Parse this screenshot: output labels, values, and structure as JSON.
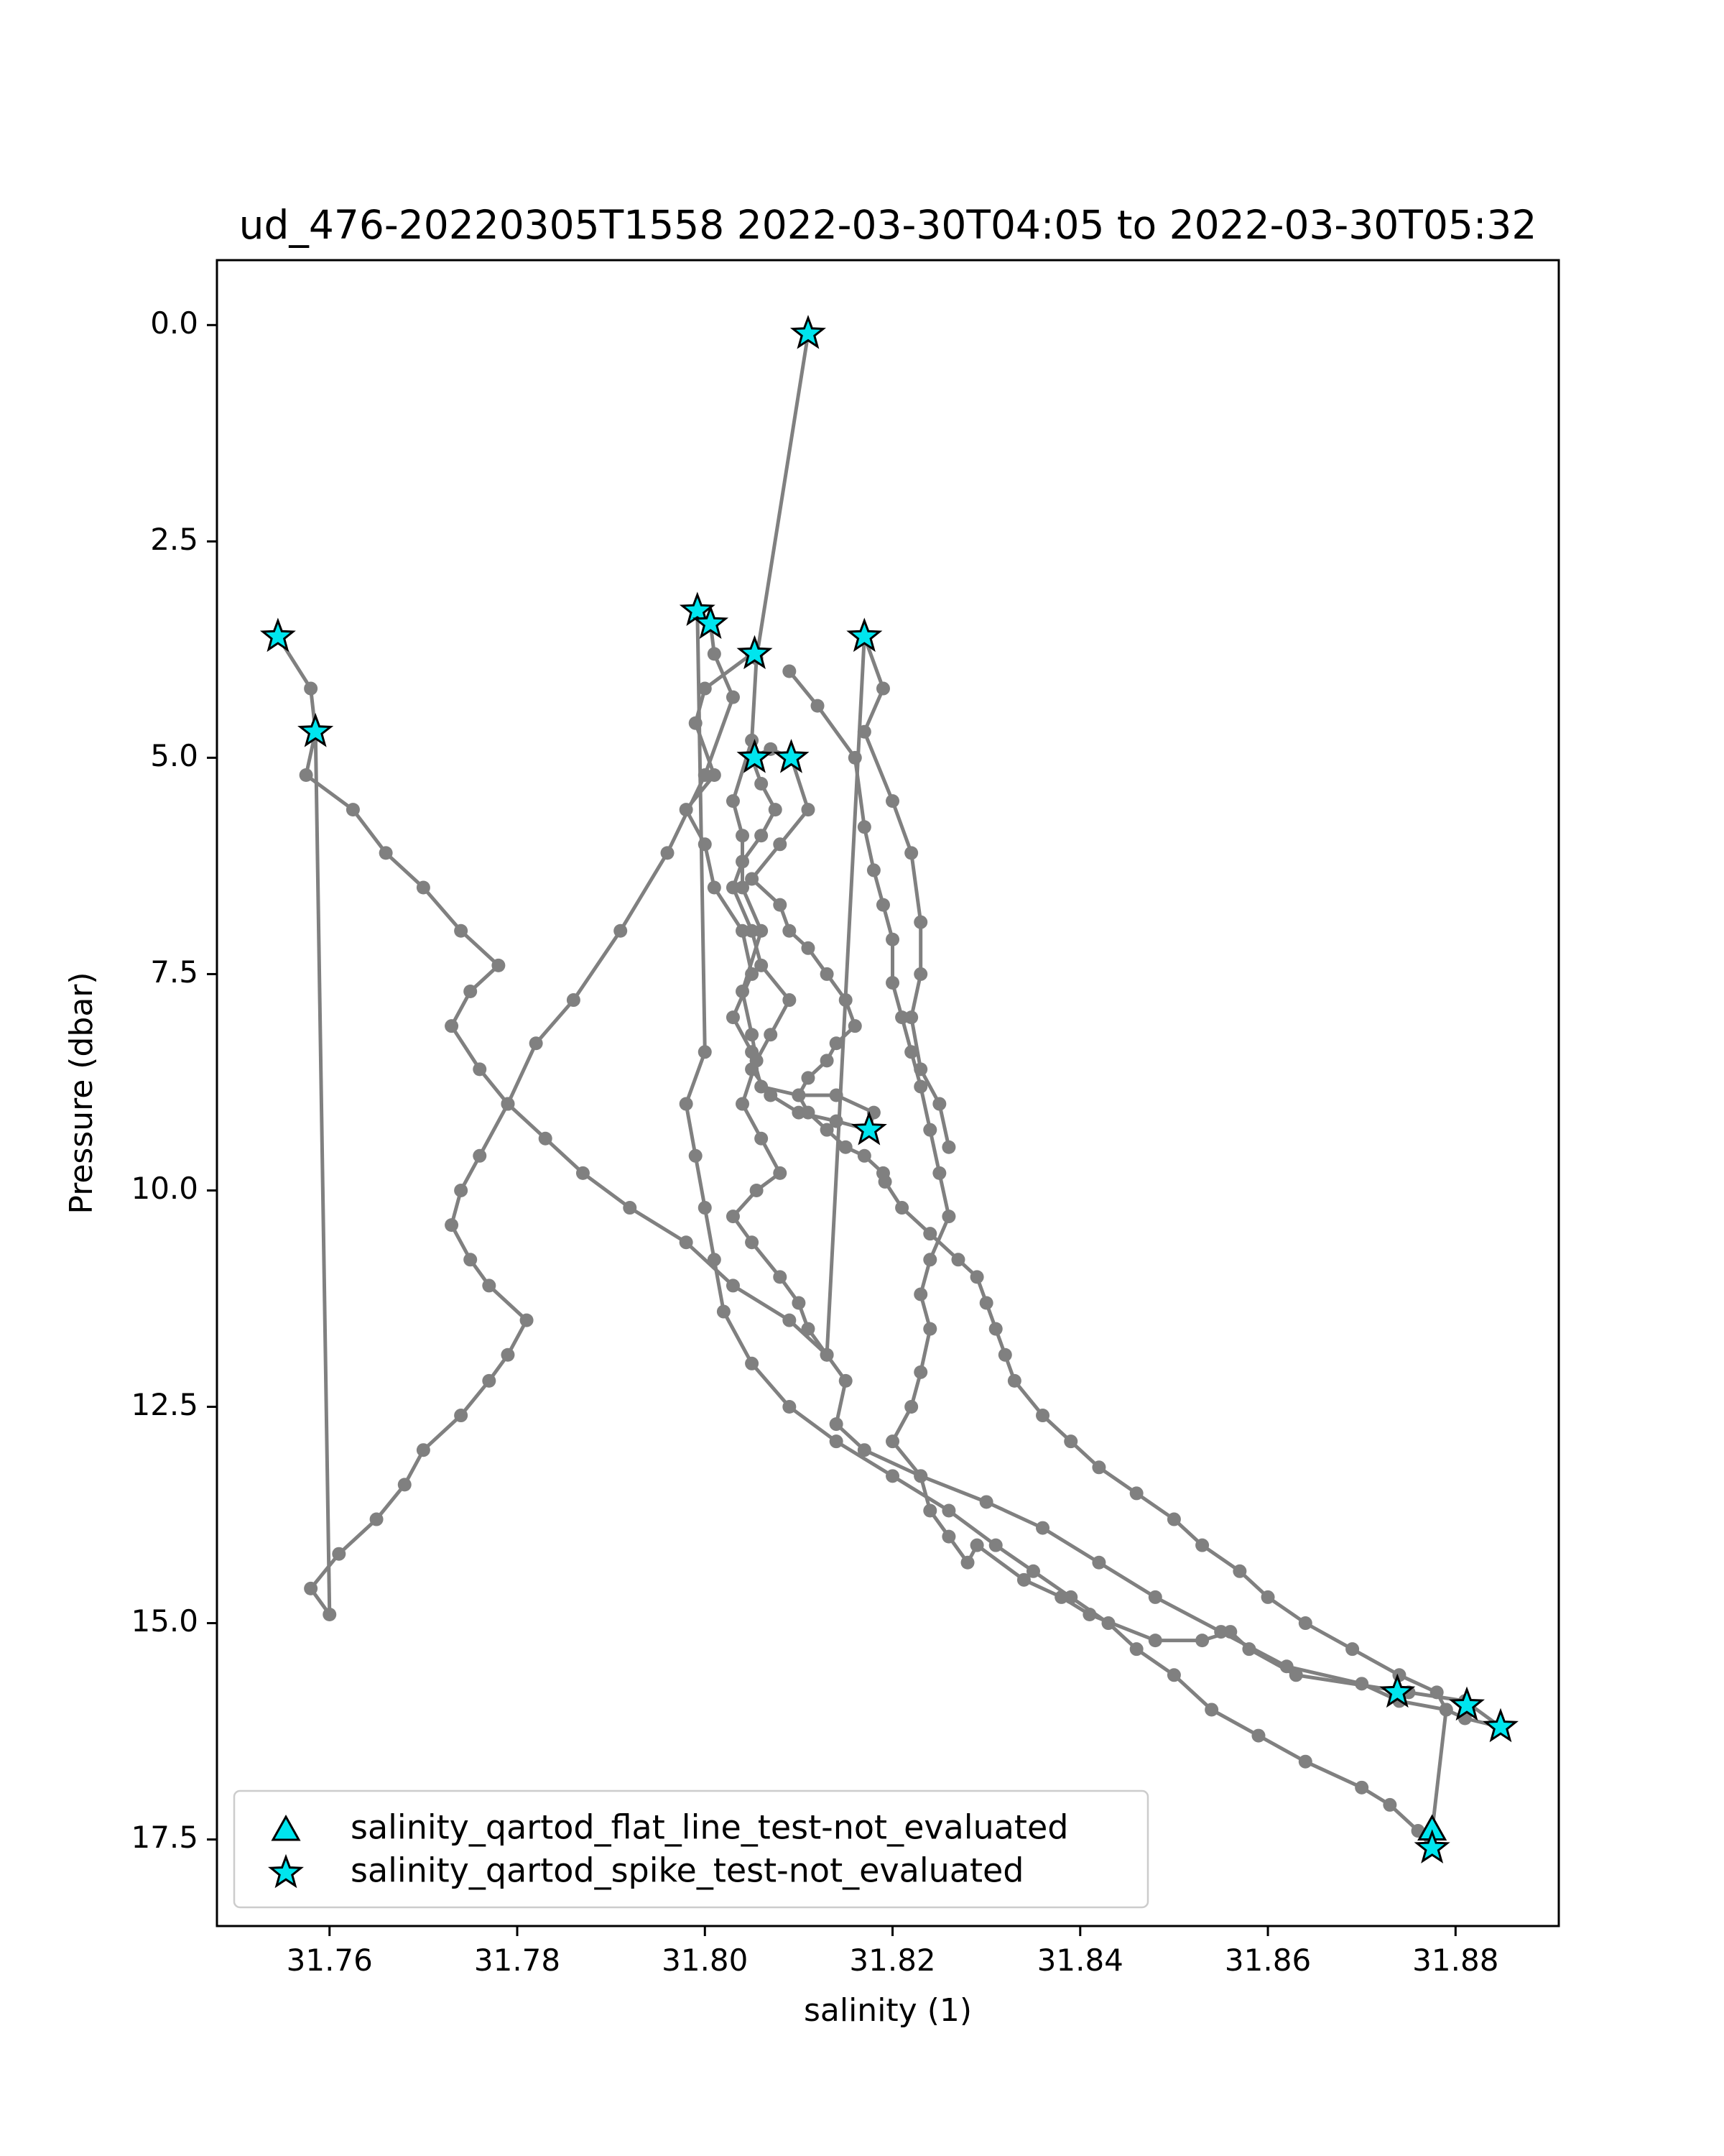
{
  "chart_data": {
    "type": "scatter",
    "title": "ud_476-20220305T1558 2022-03-30T04:05 to 2022-03-30T05:32",
    "xlabel": "salinity (1)",
    "ylabel": "Pressure (dbar)",
    "xlim": [
      31.748,
      31.891
    ],
    "ylim": [
      18.5,
      -0.75
    ],
    "y_inverted": true,
    "x_ticks": [
      "31.76",
      "31.78",
      "31.80",
      "31.82",
      "31.84",
      "31.86",
      "31.88"
    ],
    "y_ticks": [
      "0.0",
      "2.5",
      "5.0",
      "7.5",
      "10.0",
      "12.5",
      "15.0",
      "17.5"
    ],
    "grid": false,
    "legend_position": "lower-left",
    "colors": {
      "profile": "#808080",
      "flag_fill": "#00e5ee",
      "flag_edge": "#000000"
    },
    "series": [
      {
        "kind": "profile-line",
        "x": [
          31.811,
          31.8055,
          31.805,
          31.803,
          31.804,
          31.804,
          31.806,
          31.804,
          31.805,
          31.8055,
          31.804,
          31.806,
          31.808,
          31.8055,
          31.803,
          31.805,
          31.808,
          31.81,
          31.811,
          31.813,
          31.815,
          31.814,
          31.817,
          31.823,
          31.824,
          31.826,
          31.828,
          31.829,
          31.834,
          31.838,
          31.841,
          31.848,
          31.853,
          31.856,
          31.858,
          31.863,
          31.875,
          31.881,
          31.8848
        ],
        "y": [
          0.1,
          3.85,
          4.8,
          5.5,
          5.9,
          6.5,
          7.0,
          7.7,
          8.2,
          8.5,
          9.0,
          9.4,
          9.8,
          10.0,
          10.3,
          10.6,
          11.0,
          11.3,
          11.6,
          11.9,
          12.2,
          12.7,
          13.0,
          13.3,
          13.7,
          14.0,
          14.3,
          14.1,
          14.5,
          14.7,
          14.9,
          15.2,
          15.2,
          15.1,
          15.3,
          15.6,
          15.8,
          15.9,
          16.2
        ]
      },
      {
        "kind": "profile-line",
        "x": [
          31.8848,
          31.881,
          31.879,
          31.874,
          31.87,
          31.862,
          31.855,
          31.848,
          31.842,
          31.836,
          31.83,
          31.823,
          31.82,
          31.822,
          31.823,
          31.824,
          31.823,
          31.824,
          31.826,
          31.825,
          31.824,
          31.823,
          31.822,
          31.821,
          31.82,
          31.82,
          31.819,
          31.818,
          31.817,
          31.816,
          31.812,
          31.809
        ],
        "y": [
          16.2,
          16.1,
          16.0,
          15.9,
          15.7,
          15.5,
          15.1,
          14.7,
          14.3,
          13.9,
          13.6,
          13.3,
          12.9,
          12.5,
          12.1,
          11.6,
          11.2,
          10.8,
          10.3,
          9.8,
          9.3,
          8.8,
          8.4,
          8.0,
          7.6,
          7.1,
          6.7,
          6.3,
          5.8,
          5.0,
          4.4,
          4.0
        ]
      },
      {
        "kind": "profile-line",
        "x": [
          31.805,
          31.8,
          31.799,
          31.801,
          31.798,
          31.8,
          31.801,
          31.804,
          31.805,
          31.803,
          31.805,
          31.806,
          31.81,
          31.814,
          31.818,
          31.8175
        ],
        "y": [
          3.8,
          4.2,
          4.6,
          5.2,
          5.6,
          6.0,
          6.5,
          7.0,
          7.5,
          8.0,
          8.4,
          8.8,
          8.9,
          8.9,
          9.1,
          9.3
        ]
      },
      {
        "kind": "profile-line",
        "x": [
          31.8175,
          31.814,
          31.81,
          31.807,
          31.805,
          31.807,
          31.809,
          31.806,
          31.805,
          31.803,
          31.804,
          31.806,
          31.8075,
          31.806,
          31.805,
          31.807,
          31.8092
        ],
        "y": [
          9.3,
          9.2,
          9.1,
          8.9,
          8.6,
          8.2,
          7.8,
          7.4,
          7.0,
          6.5,
          6.2,
          5.9,
          5.6,
          5.3,
          5.0,
          4.9,
          5.0
        ]
      },
      {
        "kind": "profile-line",
        "x": [
          31.8092,
          31.811,
          31.808,
          31.805,
          31.808,
          31.809,
          31.811,
          31.813,
          31.815,
          31.816,
          31.814,
          31.813,
          31.811,
          31.81,
          31.811,
          31.813,
          31.815,
          31.817,
          31.819
        ],
        "y": [
          5.0,
          5.6,
          6.0,
          6.4,
          6.7,
          7.0,
          7.2,
          7.5,
          7.8,
          8.1,
          8.3,
          8.5,
          8.7,
          8.9,
          9.1,
          9.3,
          9.5,
          9.6,
          9.8
        ]
      },
      {
        "kind": "profile-line",
        "x": [
          31.8192,
          31.821,
          31.824,
          31.827,
          31.829,
          31.83,
          31.831,
          31.832,
          31.833,
          31.836,
          31.839,
          31.842,
          31.846,
          31.85,
          31.853,
          31.857,
          31.86,
          31.864,
          31.869,
          31.874,
          31.878,
          31.879,
          31.8775
        ],
        "y": [
          9.9,
          10.2,
          10.5,
          10.8,
          11.0,
          11.3,
          11.6,
          11.9,
          12.2,
          12.6,
          12.9,
          13.2,
          13.5,
          13.8,
          14.1,
          14.4,
          14.7,
          15.0,
          15.3,
          15.6,
          15.8,
          16.0,
          17.4
        ]
      },
      {
        "kind": "profile-line",
        "x": [
          31.8775,
          31.876,
          31.873,
          31.87,
          31.864,
          31.859,
          31.854,
          31.85,
          31.846,
          31.843,
          31.839,
          31.835,
          31.831,
          31.826,
          31.82,
          31.814,
          31.809,
          31.805,
          31.802,
          31.801,
          31.8,
          31.799,
          31.798,
          31.8,
          31.7992
        ],
        "y": [
          17.6,
          17.4,
          17.1,
          16.9,
          16.6,
          16.3,
          16.0,
          15.6,
          15.3,
          15.0,
          14.7,
          14.4,
          14.1,
          13.7,
          13.3,
          12.9,
          12.5,
          12.0,
          11.4,
          10.8,
          10.2,
          9.6,
          9.0,
          8.4,
          3.3
        ]
      },
      {
        "kind": "profile-line",
        "x": [
          31.7992,
          31.8006,
          31.801,
          31.803,
          31.8,
          31.796,
          31.791,
          31.786,
          31.782,
          31.779,
          31.776,
          31.774,
          31.773,
          31.775,
          31.777,
          31.781,
          31.779,
          31.777,
          31.774,
          31.77,
          31.768,
          31.765,
          31.761,
          31.758,
          31.76,
          31.7585
        ],
        "y": [
          3.3,
          3.45,
          3.8,
          4.3,
          5.2,
          6.1,
          7.0,
          7.8,
          8.3,
          9.0,
          9.6,
          10.0,
          10.4,
          10.8,
          11.1,
          11.5,
          11.9,
          12.2,
          12.6,
          13.0,
          13.4,
          13.8,
          14.2,
          14.6,
          14.9,
          4.7
        ]
      },
      {
        "kind": "profile-line",
        "x": [
          31.7585,
          31.7575,
          31.7625,
          31.766,
          31.77,
          31.774,
          31.778,
          31.775,
          31.773,
          31.776,
          31.779,
          31.783,
          31.787,
          31.792,
          31.798,
          31.803,
          31.809,
          31.813,
          31.817
        ],
        "y": [
          4.7,
          5.2,
          5.6,
          6.1,
          6.5,
          7.0,
          7.4,
          7.7,
          8.1,
          8.6,
          9.0,
          9.4,
          9.8,
          10.2,
          10.6,
          11.1,
          11.5,
          11.9,
          3.6
        ]
      },
      {
        "kind": "profile-line",
        "x": [
          31.817,
          31.819,
          31.817,
          31.82,
          31.822,
          31.823,
          31.823,
          31.822,
          31.823,
          31.825,
          31.826
        ],
        "y": [
          3.6,
          4.2,
          4.7,
          5.5,
          6.1,
          6.9,
          7.5,
          8.0,
          8.6,
          9.0,
          9.5
        ]
      },
      {
        "kind": "profile-line",
        "x": [
          31.7545,
          31.758,
          31.7585
        ],
        "y": [
          3.6,
          4.2,
          4.7
        ]
      }
    ],
    "flag_series": [
      {
        "name": "salinity_qartod_flat_line_test-not_evaluated",
        "marker": "triangle",
        "x": [
          31.8775
        ],
        "y": [
          17.4
        ]
      },
      {
        "name": "salinity_qartod_spike_test-not_evaluated",
        "marker": "star",
        "x": [
          31.811,
          31.7545,
          31.7585,
          31.7992,
          31.8006,
          31.8053,
          31.817,
          31.8053,
          31.8092,
          31.8175,
          31.8738,
          31.8812,
          31.8848,
          31.8775
        ],
        "y": [
          0.1,
          3.6,
          4.7,
          3.3,
          3.45,
          3.8,
          3.6,
          5.0,
          5.0,
          9.3,
          15.8,
          15.95,
          16.2,
          17.6
        ]
      }
    ]
  }
}
